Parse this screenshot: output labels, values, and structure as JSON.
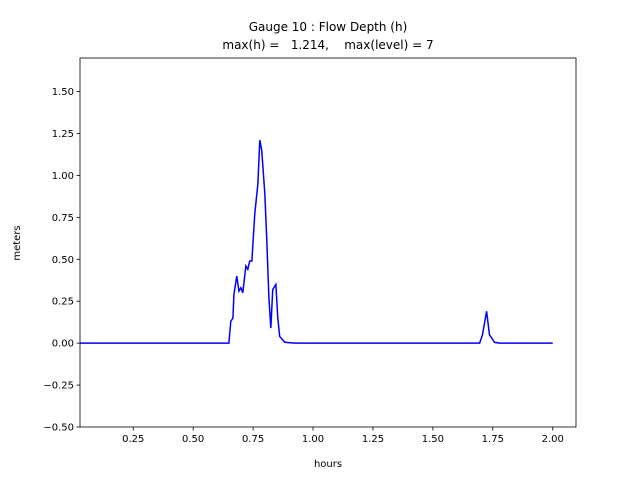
{
  "chart_data": {
    "type": "line",
    "title": "Gauge 10 : Flow Depth (h)",
    "subtitle": "max(h) =   1.214,    max(level) = 7",
    "x_label": "hours",
    "y_label": "meters",
    "x": [
      0.028,
      0.649,
      0.657,
      0.666,
      0.67,
      0.682,
      0.691,
      0.699,
      0.707,
      0.72,
      0.728,
      0.736,
      0.745,
      0.757,
      0.77,
      0.778,
      0.786,
      0.799,
      0.807,
      0.816,
      0.824,
      0.832,
      0.845,
      0.853,
      0.861,
      0.882,
      0.924,
      1.695,
      1.707,
      1.724,
      1.736,
      1.757,
      1.778,
      2.0
    ],
    "series": [
      {
        "name": "h",
        "color": "#0000ff",
        "values": [
          0,
          0,
          0.13,
          0.15,
          0.29,
          0.4,
          0.31,
          0.33,
          0.3,
          0.46,
          0.44,
          0.49,
          0.49,
          0.77,
          0.95,
          1.21,
          1.15,
          0.89,
          0.62,
          0.27,
          0.09,
          0.32,
          0.35,
          0.15,
          0.04,
          0.005,
          0,
          0,
          0.05,
          0.19,
          0.05,
          0.005,
          0,
          0
        ]
      }
    ],
    "xlim": [
      0.028,
      2.097
    ],
    "ylim": [
      -0.5,
      1.7
    ],
    "xticks": [
      0.25,
      {
        "value": 0.5,
        "label": "0.50"
      },
      0.75,
      {
        "value": 1.0,
        "label": "1.00"
      },
      1.25,
      {
        "value": 1.5,
        "label": "1.50"
      },
      1.75,
      {
        "value": 2.0,
        "label": "2.00"
      }
    ],
    "yticks": [
      {
        "value": -0.5,
        "label": "−0.50"
      },
      {
        "value": -0.25,
        "label": "−0.25"
      },
      {
        "value": 0,
        "label": "0.00"
      },
      0.25,
      {
        "value": 0.5,
        "label": "0.50"
      },
      0.75,
      {
        "value": 1.0,
        "label": "1.00"
      },
      1.25,
      {
        "value": 1.5,
        "label": "1.50"
      }
    ]
  }
}
